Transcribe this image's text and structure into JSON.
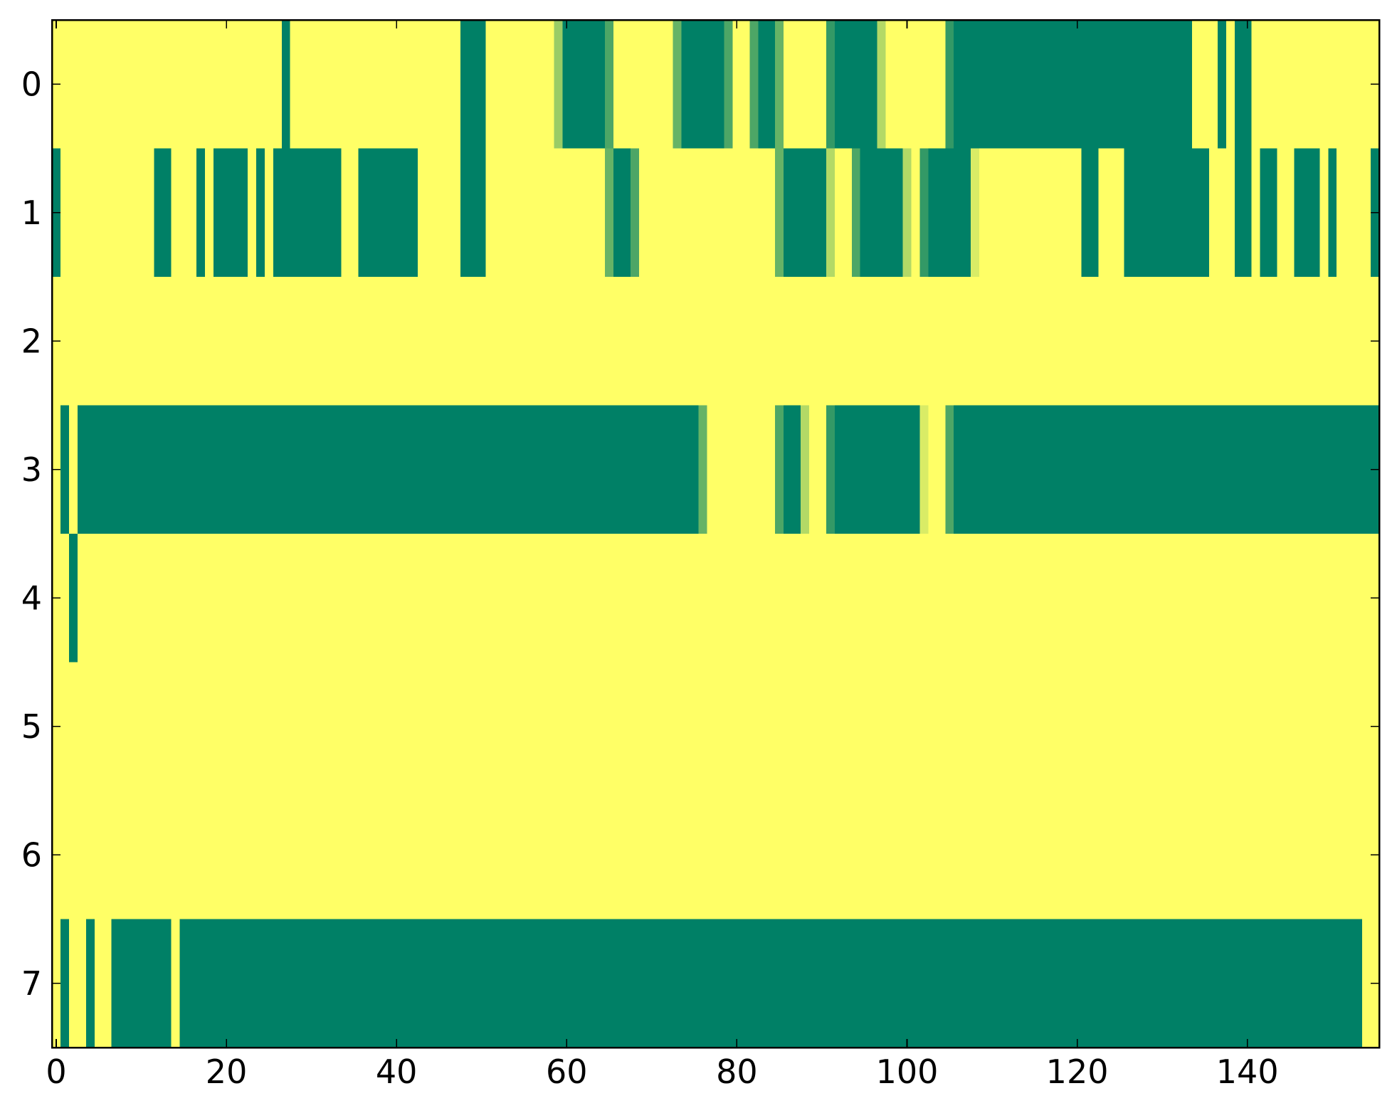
{
  "chart_data": {
    "type": "heatmap",
    "colormap_ends": [
      "#008066",
      "#ffff66"
    ],
    "xlim": [
      -0.5,
      155.5
    ],
    "ylim": [
      7.5,
      -0.5
    ],
    "xticks": [
      0,
      20,
      40,
      60,
      80,
      100,
      120,
      140
    ],
    "yticks": [
      0,
      1,
      2,
      3,
      4,
      5,
      6,
      7
    ],
    "z": [
      [
        1,
        1,
        1,
        1,
        1,
        1,
        1,
        1,
        1,
        1,
        1,
        1,
        1,
        1,
        1,
        1,
        1,
        1,
        1,
        1,
        1,
        1,
        1,
        1,
        1,
        1,
        1,
        0,
        1,
        1,
        1,
        1,
        1,
        1,
        1,
        1,
        1,
        1,
        1,
        1,
        1,
        1,
        1,
        1,
        1,
        1,
        1,
        1,
        0,
        0,
        0,
        1,
        1,
        1,
        1,
        1,
        1,
        1,
        1,
        0.6,
        0,
        0,
        0,
        0,
        0,
        0.3,
        1,
        1,
        1,
        1,
        1,
        1,
        1,
        0.4,
        0,
        0,
        0,
        0,
        0,
        0.3,
        1,
        1,
        0.3,
        0,
        0,
        0.4,
        1,
        1,
        1,
        1,
        1,
        0.2,
        0,
        0,
        0,
        0,
        0,
        0.7,
        1,
        1,
        1,
        1,
        1,
        1,
        1,
        0.2,
        0,
        0,
        0,
        0,
        0,
        0,
        0,
        0,
        0,
        0,
        0,
        0,
        0,
        0,
        0,
        0,
        0,
        0,
        0,
        0,
        0,
        0,
        0,
        0,
        0,
        0,
        0,
        0,
        1,
        1,
        1,
        0,
        1,
        0,
        0,
        1,
        1,
        1,
        1,
        1,
        1,
        1,
        1,
        1,
        1,
        1,
        1,
        1,
        1,
        1
      ],
      [
        0,
        1,
        1,
        1,
        1,
        1,
        1,
        1,
        1,
        1,
        1,
        1,
        0,
        0,
        1,
        1,
        1,
        0,
        1,
        0,
        0,
        0,
        0,
        1,
        0,
        1,
        0,
        0,
        0,
        0,
        0,
        0,
        0,
        0,
        1,
        1,
        0,
        0,
        0,
        0,
        0,
        0,
        0,
        1,
        1,
        1,
        1,
        1,
        0,
        0,
        0,
        1,
        1,
        1,
        1,
        1,
        1,
        1,
        1,
        1,
        1,
        1,
        1,
        1,
        1,
        0.4,
        0,
        0,
        0.3,
        1,
        1,
        1,
        1,
        1,
        1,
        1,
        1,
        1,
        1,
        1,
        1,
        1,
        1,
        1,
        1,
        0.4,
        0,
        0,
        0,
        0,
        0,
        0.7,
        1,
        1,
        0.3,
        0,
        0,
        0,
        0,
        0,
        0.7,
        1,
        0.2,
        0,
        0,
        0,
        0,
        0,
        0.85,
        1,
        1,
        1,
        1,
        1,
        1,
        1,
        1,
        1,
        1,
        1,
        1,
        0,
        0,
        1,
        1,
        1,
        0,
        0,
        0,
        0,
        0,
        0,
        0,
        0,
        0,
        0,
        1,
        1,
        1,
        0,
        0,
        1,
        0,
        0,
        1,
        1,
        0,
        0,
        0,
        1,
        0,
        1,
        1,
        1,
        1,
        0
      ],
      [
        1,
        1,
        1,
        1,
        1,
        1,
        1,
        1,
        1,
        1,
        1,
        1,
        1,
        1,
        1,
        1,
        1,
        1,
        1,
        1,
        1,
        1,
        1,
        1,
        1,
        1,
        1,
        1,
        1,
        1,
        1,
        1,
        1,
        1,
        1,
        1,
        1,
        1,
        1,
        1,
        1,
        1,
        1,
        1,
        1,
        1,
        1,
        1,
        1,
        1,
        1,
        1,
        1,
        1,
        1,
        1,
        1,
        1,
        1,
        1,
        1,
        1,
        1,
        1,
        1,
        1,
        1,
        1,
        1,
        1,
        1,
        1,
        1,
        1,
        1,
        1,
        1,
        1,
        1,
        1,
        1,
        1,
        1,
        1,
        1,
        1,
        1,
        1,
        1,
        1,
        1,
        1,
        1,
        1,
        1,
        1,
        1,
        1,
        1,
        1,
        1,
        1,
        1,
        1,
        1,
        1,
        1,
        1,
        1,
        1,
        1,
        1,
        1,
        1,
        1,
        1,
        1,
        1,
        1,
        1,
        1,
        1,
        1,
        1,
        1,
        1,
        1,
        1,
        1,
        1,
        1,
        1,
        1,
        1,
        1,
        1,
        1,
        1,
        1,
        1,
        1,
        1,
        1,
        1,
        1,
        1,
        1,
        1,
        1,
        1,
        1,
        1,
        1,
        1,
        1,
        1
      ],
      [
        1,
        0,
        1,
        0,
        0,
        0,
        0,
        0,
        0,
        0,
        0,
        0,
        0,
        0,
        0,
        0,
        0,
        0,
        0,
        0,
        0,
        0,
        0,
        0,
        0,
        0,
        0,
        0,
        0,
        0,
        0,
        0,
        0,
        0,
        0,
        0,
        0,
        0,
        0,
        0,
        0,
        0,
        0,
        0,
        0,
        0,
        0,
        0,
        0,
        0,
        0,
        0,
        0,
        0,
        0,
        0,
        0,
        0,
        0,
        0,
        0,
        0,
        0,
        0,
        0,
        0,
        0,
        0,
        0,
        0,
        0,
        0,
        0,
        0,
        0,
        0,
        0.4,
        1,
        1,
        1,
        1,
        1,
        1,
        1,
        1,
        0.3,
        0,
        0,
        0.7,
        1,
        1,
        0.2,
        0,
        0,
        0,
        0,
        0,
        0,
        0,
        0,
        0,
        0,
        0.85,
        1,
        1,
        0.3,
        0,
        0,
        0,
        0,
        0,
        0,
        0,
        0,
        0,
        0,
        0,
        0,
        0,
        0,
        0,
        0,
        0,
        0,
        0,
        0,
        0,
        0,
        0,
        0,
        0,
        0,
        0,
        0,
        0,
        0,
        0,
        0,
        0,
        0,
        0,
        0,
        0,
        0,
        0,
        0,
        0,
        0,
        0,
        0,
        0,
        0,
        0,
        0,
        0,
        0
      ],
      [
        1,
        1,
        0,
        1,
        1,
        1,
        1,
        1,
        1,
        1,
        1,
        1,
        1,
        1,
        1,
        1,
        1,
        1,
        1,
        1,
        1,
        1,
        1,
        1,
        1,
        1,
        1,
        1,
        1,
        1,
        1,
        1,
        1,
        1,
        1,
        1,
        1,
        1,
        1,
        1,
        1,
        1,
        1,
        1,
        1,
        1,
        1,
        1,
        1,
        1,
        1,
        1,
        1,
        1,
        1,
        1,
        1,
        1,
        1,
        1,
        1,
        1,
        1,
        1,
        1,
        1,
        1,
        1,
        1,
        1,
        1,
        1,
        1,
        1,
        1,
        1,
        1,
        1,
        1,
        1,
        1,
        1,
        1,
        1,
        1,
        1,
        1,
        1,
        1,
        1,
        1,
        1,
        1,
        1,
        1,
        1,
        1,
        1,
        1,
        1,
        1,
        1,
        1,
        1,
        1,
        1,
        1,
        1,
        1,
        1,
        1,
        1,
        1,
        1,
        1,
        1,
        1,
        1,
        1,
        1,
        1,
        1,
        1,
        1,
        1,
        1,
        1,
        1,
        1,
        1,
        1,
        1,
        1,
        1,
        1,
        1,
        1,
        1,
        1,
        1,
        1,
        1,
        1,
        1,
        1,
        1,
        1,
        1,
        1,
        1,
        1,
        1,
        1,
        1,
        1,
        1
      ],
      [
        1,
        1,
        1,
        1,
        1,
        1,
        1,
        1,
        1,
        1,
        1,
        1,
        1,
        1,
        1,
        1,
        1,
        1,
        1,
        1,
        1,
        1,
        1,
        1,
        1,
        1,
        1,
        1,
        1,
        1,
        1,
        1,
        1,
        1,
        1,
        1,
        1,
        1,
        1,
        1,
        1,
        1,
        1,
        1,
        1,
        1,
        1,
        1,
        1,
        1,
        1,
        1,
        1,
        1,
        1,
        1,
        1,
        1,
        1,
        1,
        1,
        1,
        1,
        1,
        1,
        1,
        1,
        1,
        1,
        1,
        1,
        1,
        1,
        1,
        1,
        1,
        1,
        1,
        1,
        1,
        1,
        1,
        1,
        1,
        1,
        1,
        1,
        1,
        1,
        1,
        1,
        1,
        1,
        1,
        1,
        1,
        1,
        1,
        1,
        1,
        1,
        1,
        1,
        1,
        1,
        1,
        1,
        1,
        1,
        1,
        1,
        1,
        1,
        1,
        1,
        1,
        1,
        1,
        1,
        1,
        1,
        1,
        1,
        1,
        1,
        1,
        1,
        1,
        1,
        1,
        1,
        1,
        1,
        1,
        1,
        1,
        1,
        1,
        1,
        1,
        1,
        1,
        1,
        1,
        1,
        1,
        1,
        1,
        1,
        1,
        1,
        1,
        1,
        1,
        1,
        1
      ],
      [
        1,
        1,
        1,
        1,
        1,
        1,
        1,
        1,
        1,
        1,
        1,
        1,
        1,
        1,
        1,
        1,
        1,
        1,
        1,
        1,
        1,
        1,
        1,
        1,
        1,
        1,
        1,
        1,
        1,
        1,
        1,
        1,
        1,
        1,
        1,
        1,
        1,
        1,
        1,
        1,
        1,
        1,
        1,
        1,
        1,
        1,
        1,
        1,
        1,
        1,
        1,
        1,
        1,
        1,
        1,
        1,
        1,
        1,
        1,
        1,
        1,
        1,
        1,
        1,
        1,
        1,
        1,
        1,
        1,
        1,
        1,
        1,
        1,
        1,
        1,
        1,
        1,
        1,
        1,
        1,
        1,
        1,
        1,
        1,
        1,
        1,
        1,
        1,
        1,
        1,
        1,
        1,
        1,
        1,
        1,
        1,
        1,
        1,
        1,
        1,
        1,
        1,
        1,
        1,
        1,
        1,
        1,
        1,
        1,
        1,
        1,
        1,
        1,
        1,
        1,
        1,
        1,
        1,
        1,
        1,
        1,
        1,
        1,
        1,
        1,
        1,
        1,
        1,
        1,
        1,
        1,
        1,
        1,
        1,
        1,
        1,
        1,
        1,
        1,
        1,
        1,
        1,
        1,
        1,
        1,
        1,
        1,
        1,
        1,
        1,
        1,
        1,
        1,
        1,
        1,
        1
      ],
      [
        1,
        0,
        1,
        1,
        0,
        1,
        1,
        0,
        0,
        0,
        0,
        0,
        0,
        0,
        1,
        0,
        0,
        0,
        0,
        0,
        0,
        0,
        0,
        0,
        0,
        0,
        0,
        0,
        0,
        0,
        0,
        0,
        0,
        0,
        0,
        0,
        0,
        0,
        0,
        0,
        0,
        0,
        0,
        0,
        0,
        0,
        0,
        0,
        0,
        0,
        0,
        0,
        0,
        0,
        0,
        0,
        0,
        0,
        0,
        0,
        0,
        0,
        0,
        0,
        0,
        0,
        0,
        0,
        0,
        0,
        0,
        0,
        0,
        0,
        0,
        0,
        0,
        0,
        0,
        0,
        0,
        0,
        0,
        0,
        0,
        0,
        0,
        0,
        0,
        0,
        0,
        0,
        0,
        0,
        0,
        0,
        0,
        0,
        0,
        0,
        0,
        0,
        0,
        0,
        0,
        0,
        0,
        0,
        0,
        0,
        0,
        0,
        0,
        0,
        0,
        0,
        0,
        0,
        0,
        0,
        0,
        0,
        0,
        0,
        0,
        0,
        0,
        0,
        0,
        0,
        0,
        0,
        0,
        0,
        0,
        0,
        0,
        0,
        0,
        0,
        0,
        0,
        0,
        0,
        0,
        0,
        0,
        0,
        0,
        0,
        0,
        0,
        0,
        0,
        1,
        1
      ]
    ]
  }
}
